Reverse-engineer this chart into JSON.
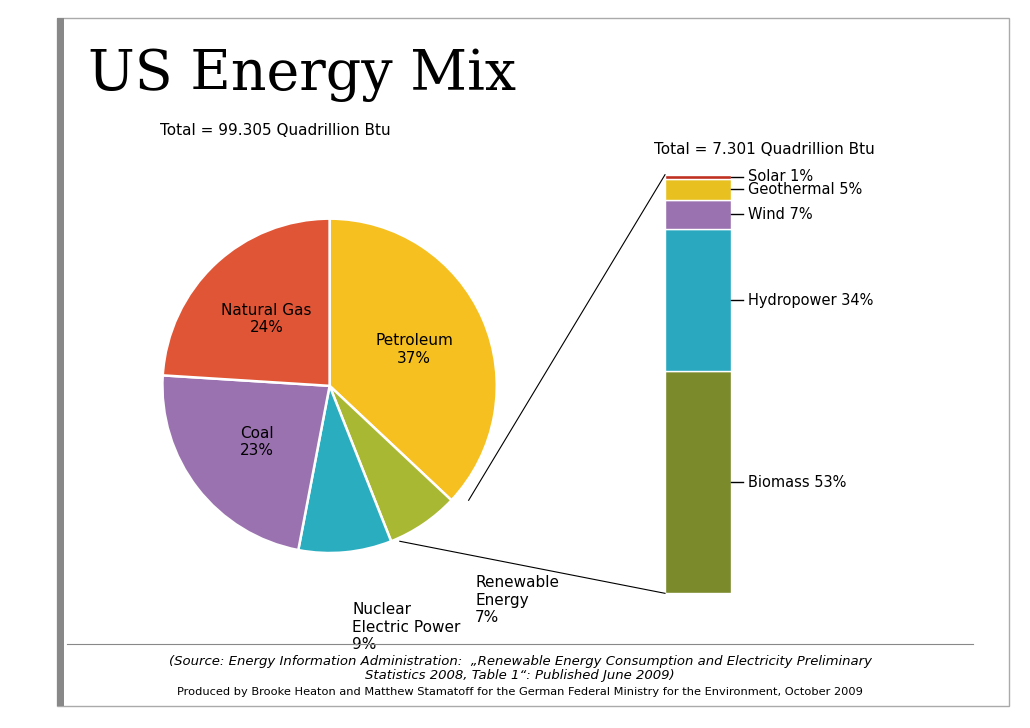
{
  "title": "US Energy Mix",
  "pie_total_label": "Total = 99.305 Quadrillion Btu",
  "bar_total_label": "Total = 7.301 Quadrillion Btu",
  "pie_sizes": [
    37,
    24,
    23,
    9,
    7
  ],
  "pie_colors": [
    "#F5C020",
    "#E05535",
    "#9B72B0",
    "#2BADC0",
    "#A8B832"
  ],
  "pie_label_texts": [
    "Petroleum\n37%",
    "Natural Gas\n24%",
    "Coal\n23%",
    "Nuclear\nElectric Power\n9%",
    "Renewable\nEnergy\n7%"
  ],
  "bar_sizes": [
    53,
    34,
    7,
    5,
    1
  ],
  "bar_colors": [
    "#7B8B2B",
    "#29A8C0",
    "#9B72B0",
    "#E8C020",
    "#C03020"
  ],
  "bar_label_texts": [
    "Biomass 53%",
    "Hydropower 34%",
    "Wind 7%",
    "Geothermal 5%",
    "Solar 1%"
  ],
  "source_line1": "(Source: Energy Information Administration:  „Renewable Energy Consumption and Electricity Preliminary",
  "source_line2": "Statistics 2008, Table 1“: Published June 2009)",
  "source_line3": "Produced by Brooke Heaton and Matthew Stamatoff for the German Federal Ministry for the Environment, October 2009",
  "bg_color": "#FFFFFF"
}
